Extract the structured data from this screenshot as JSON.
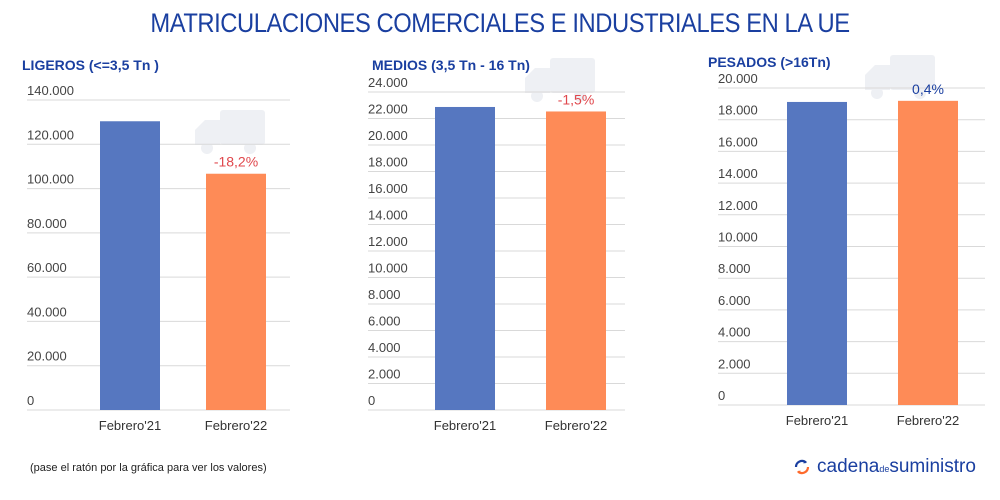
{
  "title": "MATRICULACIONES COMERCIALES E INDUSTRIALES EN LA UE",
  "note": "(pase el ratón por la gráfica para ver los valores)",
  "logo": {
    "part1": "cadena",
    "part2": "de",
    "part3": "suministro",
    "icon": "sync-arrows-icon"
  },
  "colors": {
    "series1": "#5677c0",
    "series2": "#fe8b57",
    "title": "#1a3fa0",
    "negative": "#e0474c",
    "positive": "#1a3fa0"
  },
  "chart_data": [
    {
      "type": "bar",
      "title": "LIGEROS (<=3,5 Tn )",
      "categories": [
        "Febrero'21",
        "Febrero'22"
      ],
      "values": [
        130400,
        106700
      ],
      "annotation": "-18,2%",
      "annotation_sign": "negative",
      "ylim": [
        0,
        140000
      ],
      "yticks": [
        "0",
        "20.000",
        "40.000",
        "60.000",
        "80.000",
        "100.000",
        "120.000",
        "140.000"
      ],
      "grid": true,
      "watermark_icon": "van-icon"
    },
    {
      "type": "bar",
      "title": "MEDIOS (3,5 Tn - 16 Tn)",
      "categories": [
        "Febrero'21",
        "Febrero'22"
      ],
      "values": [
        22870,
        22530
      ],
      "annotation": "-1,5%",
      "annotation_sign": "negative",
      "ylim": [
        0,
        24000
      ],
      "yticks": [
        "0",
        "2.000",
        "4.000",
        "6.000",
        "8.000",
        "10.000",
        "12.000",
        "14.000",
        "16.000",
        "18.000",
        "20.000",
        "22.000",
        "24.000"
      ],
      "grid": true,
      "watermark_icon": "truck-icon"
    },
    {
      "type": "bar",
      "title": "PESADOS (>16Tn)",
      "categories": [
        "Febrero'21",
        "Febrero'22"
      ],
      "values": [
        19120,
        19190
      ],
      "annotation": "0,4%",
      "annotation_sign": "positive",
      "ylim": [
        0,
        20000
      ],
      "yticks": [
        "0",
        "2.000",
        "4.000",
        "6.000",
        "8.000",
        "10.000",
        "12.000",
        "14.000",
        "16.000",
        "18.000",
        "20.000"
      ],
      "grid": true,
      "watermark_icon": "semi-truck-icon"
    }
  ]
}
